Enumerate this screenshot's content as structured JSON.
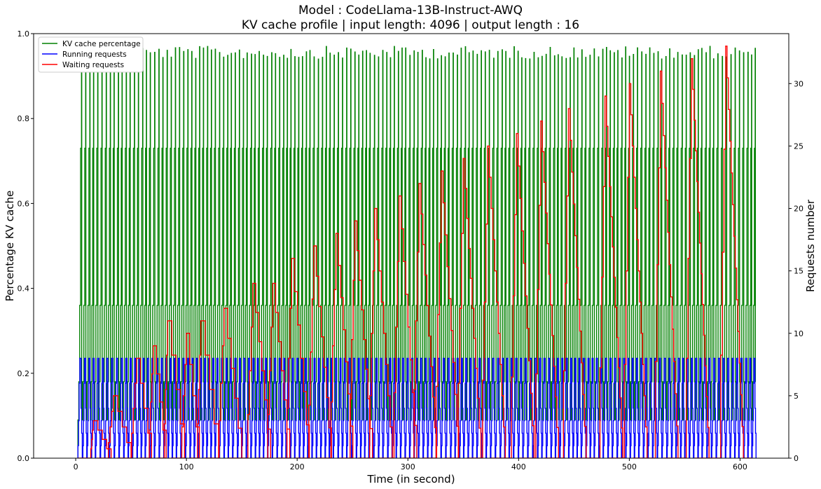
{
  "chart_data": {
    "type": "line",
    "title": "Model : CodeLlama-13B-Instruct-AWQ",
    "subtitle": "KV cache profile | input length: 4096 | output length : 16",
    "xlabel": "Time (in second)",
    "ylabel": "Percentage KV cache",
    "ylabel_right": "Requests number",
    "xlim": [
      -38,
      644
    ],
    "ylim": [
      0,
      1.0
    ],
    "ylim_right": [
      0,
      34
    ],
    "x_ticks": [
      "0",
      "100",
      "200",
      "300",
      "400",
      "500",
      "600"
    ],
    "y_ticks": [
      "0.0",
      "0.2",
      "0.4",
      "0.6",
      "0.8",
      "1.0"
    ],
    "y_right_ticks": [
      "0",
      "5",
      "10",
      "15",
      "20",
      "25",
      "30"
    ],
    "legend_position": "top-left",
    "grid": false,
    "series": [
      {
        "name": "KV cache percentage",
        "axis": "left",
        "color": "#008000",
        "description": "Step-like sawtooth cycling between about 0.09 and 0.97; levels 0.09, 0.18, 0.36, 0.73 and peaks near 0.97",
        "peak_levels": [
          0.09,
          0.18,
          0.36,
          0.73,
          0.97
        ],
        "x_range": [
          2,
          611
        ]
      },
      {
        "name": "Running requests",
        "axis": "right",
        "color": "#0000ff",
        "description": "Step cycles between 0 and 8 requests",
        "levels": [
          0,
          1,
          2,
          3,
          4,
          5,
          6,
          7,
          8
        ],
        "x_range": [
          2,
          611
        ]
      },
      {
        "name": "Waiting requests",
        "axis": "right",
        "color": "#ff0000",
        "description": "Staircase pattern whose per-cycle peak grows roughly linearly from about 3 to 33 requests",
        "peak_points": [
          {
            "x": 16,
            "y": 3
          },
          {
            "x": 34,
            "y": 5
          },
          {
            "x": 55,
            "y": 8
          },
          {
            "x": 70,
            "y": 9
          },
          {
            "x": 83,
            "y": 11
          },
          {
            "x": 100,
            "y": 10
          },
          {
            "x": 113,
            "y": 11
          },
          {
            "x": 134,
            "y": 12
          },
          {
            "x": 160,
            "y": 14
          },
          {
            "x": 178,
            "y": 14
          },
          {
            "x": 195,
            "y": 16
          },
          {
            "x": 215,
            "y": 17
          },
          {
            "x": 235,
            "y": 18
          },
          {
            "x": 252,
            "y": 19
          },
          {
            "x": 270,
            "y": 20
          },
          {
            "x": 292,
            "y": 21
          },
          {
            "x": 310,
            "y": 22
          },
          {
            "x": 330,
            "y": 23
          },
          {
            "x": 350,
            "y": 24
          },
          {
            "x": 372,
            "y": 25
          },
          {
            "x": 398,
            "y": 26
          },
          {
            "x": 420,
            "y": 27
          },
          {
            "x": 445,
            "y": 28
          },
          {
            "x": 478,
            "y": 29
          },
          {
            "x": 500,
            "y": 30
          },
          {
            "x": 528,
            "y": 31
          },
          {
            "x": 556,
            "y": 32
          },
          {
            "x": 587,
            "y": 33
          }
        ],
        "x_range": [
          2,
          611
        ]
      }
    ]
  }
}
